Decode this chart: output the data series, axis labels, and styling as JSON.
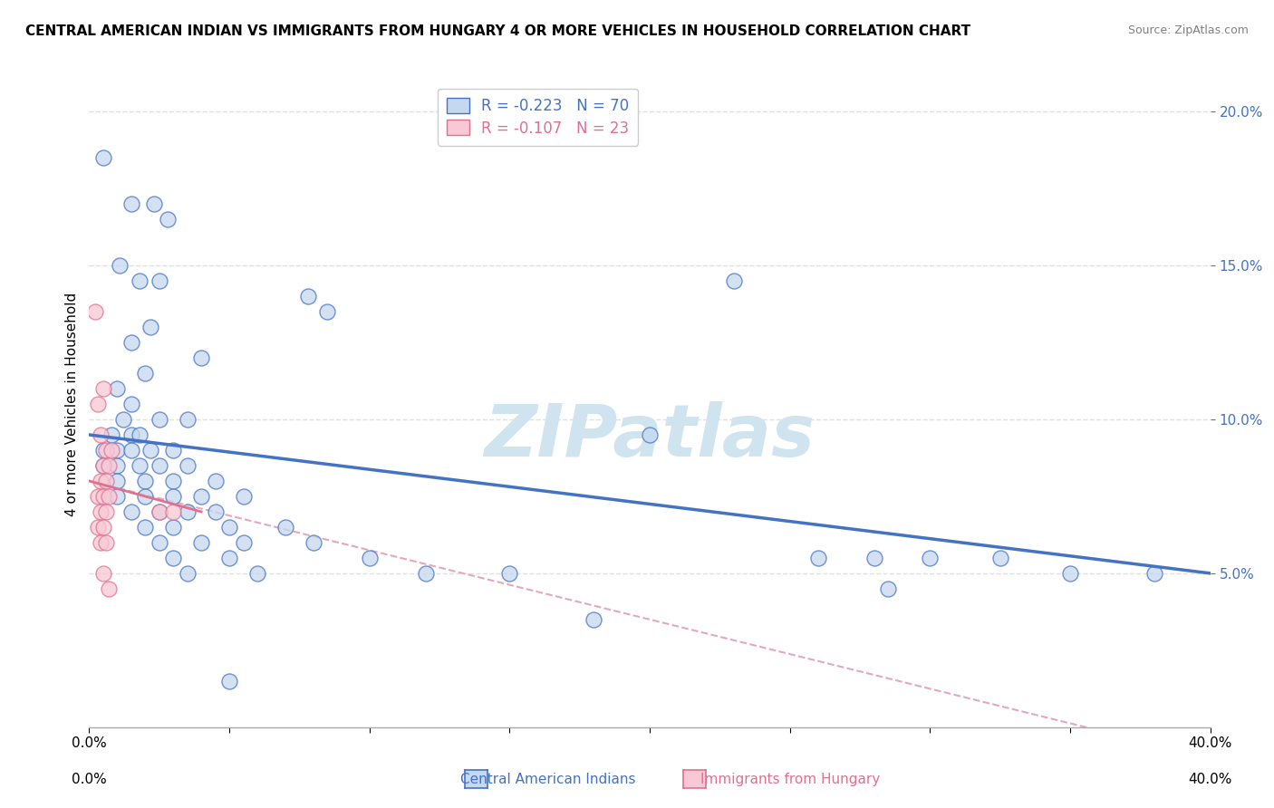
{
  "title": "CENTRAL AMERICAN INDIAN VS IMMIGRANTS FROM HUNGARY 4 OR MORE VEHICLES IN HOUSEHOLD CORRELATION CHART",
  "source": "Source: ZipAtlas.com",
  "ylabel": "4 or more Vehicles in Household",
  "xmin": 0.0,
  "xmax": 40.0,
  "ymin": 0.0,
  "ymax": 21.0,
  "yticks": [
    5.0,
    10.0,
    15.0,
    20.0
  ],
  "xticks": [
    0.0,
    5.0,
    10.0,
    15.0,
    20.0,
    25.0,
    30.0,
    35.0,
    40.0
  ],
  "legend_label_blue": "Central American Indians",
  "legend_label_pink": "Immigrants from Hungary",
  "blue_R": -0.223,
  "blue_N": 70,
  "pink_R": -0.107,
  "pink_N": 23,
  "blue_scatter": [
    [
      0.5,
      18.5
    ],
    [
      1.5,
      17.0
    ],
    [
      2.3,
      17.0
    ],
    [
      2.8,
      16.5
    ],
    [
      1.1,
      15.0
    ],
    [
      1.8,
      14.5
    ],
    [
      2.5,
      14.5
    ],
    [
      7.8,
      14.0
    ],
    [
      8.5,
      13.5
    ],
    [
      2.2,
      13.0
    ],
    [
      1.5,
      12.5
    ],
    [
      4.0,
      12.0
    ],
    [
      2.0,
      11.5
    ],
    [
      1.0,
      11.0
    ],
    [
      1.5,
      10.5
    ],
    [
      1.2,
      10.0
    ],
    [
      2.5,
      10.0
    ],
    [
      3.5,
      10.0
    ],
    [
      0.8,
      9.5
    ],
    [
      1.5,
      9.5
    ],
    [
      1.8,
      9.5
    ],
    [
      0.5,
      9.0
    ],
    [
      1.0,
      9.0
    ],
    [
      1.5,
      9.0
    ],
    [
      2.2,
      9.0
    ],
    [
      3.0,
      9.0
    ],
    [
      0.5,
      8.5
    ],
    [
      1.0,
      8.5
    ],
    [
      1.8,
      8.5
    ],
    [
      2.5,
      8.5
    ],
    [
      3.5,
      8.5
    ],
    [
      1.0,
      8.0
    ],
    [
      2.0,
      8.0
    ],
    [
      3.0,
      8.0
    ],
    [
      4.5,
      8.0
    ],
    [
      1.0,
      7.5
    ],
    [
      2.0,
      7.5
    ],
    [
      3.0,
      7.5
    ],
    [
      4.0,
      7.5
    ],
    [
      5.5,
      7.5
    ],
    [
      1.5,
      7.0
    ],
    [
      2.5,
      7.0
    ],
    [
      3.5,
      7.0
    ],
    [
      4.5,
      7.0
    ],
    [
      2.0,
      6.5
    ],
    [
      3.0,
      6.5
    ],
    [
      5.0,
      6.5
    ],
    [
      7.0,
      6.5
    ],
    [
      2.5,
      6.0
    ],
    [
      4.0,
      6.0
    ],
    [
      5.5,
      6.0
    ],
    [
      8.0,
      6.0
    ],
    [
      3.0,
      5.5
    ],
    [
      5.0,
      5.5
    ],
    [
      10.0,
      5.5
    ],
    [
      3.5,
      5.0
    ],
    [
      6.0,
      5.0
    ],
    [
      12.0,
      5.0
    ],
    [
      20.0,
      9.5
    ],
    [
      23.0,
      14.5
    ],
    [
      26.0,
      5.5
    ],
    [
      28.0,
      5.5
    ],
    [
      30.0,
      5.5
    ],
    [
      32.5,
      5.5
    ],
    [
      35.0,
      5.0
    ],
    [
      38.0,
      5.0
    ],
    [
      15.0,
      5.0
    ],
    [
      18.0,
      3.5
    ],
    [
      28.5,
      4.5
    ],
    [
      5.0,
      1.5
    ]
  ],
  "pink_scatter": [
    [
      0.2,
      13.5
    ],
    [
      0.5,
      11.0
    ],
    [
      0.3,
      10.5
    ],
    [
      0.4,
      9.5
    ],
    [
      0.6,
      9.0
    ],
    [
      0.8,
      9.0
    ],
    [
      0.5,
      8.5
    ],
    [
      0.7,
      8.5
    ],
    [
      0.4,
      8.0
    ],
    [
      0.6,
      8.0
    ],
    [
      0.3,
      7.5
    ],
    [
      0.5,
      7.5
    ],
    [
      0.7,
      7.5
    ],
    [
      0.4,
      7.0
    ],
    [
      0.6,
      7.0
    ],
    [
      0.3,
      6.5
    ],
    [
      0.5,
      6.5
    ],
    [
      0.4,
      6.0
    ],
    [
      0.6,
      6.0
    ],
    [
      2.5,
      7.0
    ],
    [
      3.0,
      7.0
    ],
    [
      0.5,
      5.0
    ],
    [
      0.7,
      4.5
    ]
  ],
  "blue_line_color": "#4472c4",
  "pink_line_color": "#e07090",
  "dashed_line_color": "#e0a0b0",
  "scatter_blue_color": "#c5d8f0",
  "scatter_pink_color": "#f8c8d4",
  "watermark_color": "#d0e4f0",
  "background_color": "#ffffff",
  "grid_color": "#e0e0e0"
}
